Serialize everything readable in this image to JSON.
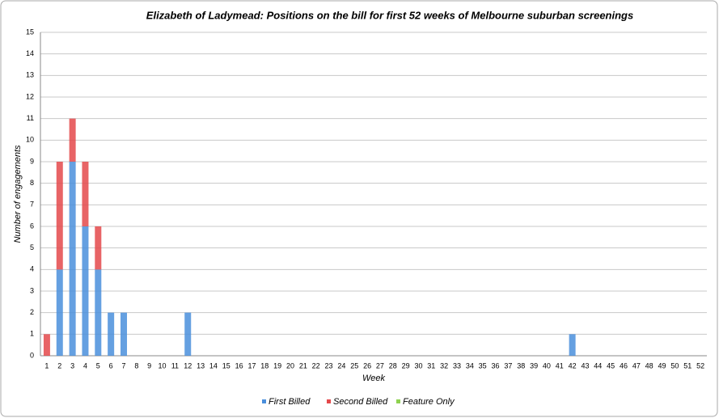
{
  "chart_data": {
    "type": "bar",
    "stacked": true,
    "title": "Elizabeth of Ladymead: Positions on the bill for first 52 weeks of Melbourne suburban screenings",
    "x_label": "Week",
    "y_label": "Number of engagements",
    "categories": [
      "1",
      "2",
      "3",
      "4",
      "5",
      "6",
      "7",
      "8",
      "9",
      "10",
      "11",
      "12",
      "13",
      "14",
      "15",
      "16",
      "17",
      "18",
      "19",
      "20",
      "21",
      "22",
      "23",
      "24",
      "25",
      "26",
      "27",
      "28",
      "29",
      "30",
      "31",
      "32",
      "33",
      "34",
      "35",
      "36",
      "37",
      "38",
      "39",
      "40",
      "41",
      "42",
      "43",
      "44",
      "45",
      "46",
      "47",
      "48",
      "49",
      "50",
      "51",
      "52"
    ],
    "series": [
      {
        "name": "First Billed",
        "color": "#4a8fdc",
        "values": [
          0,
          4,
          9,
          6,
          4,
          2,
          2,
          0,
          0,
          0,
          0,
          2,
          0,
          0,
          0,
          0,
          0,
          0,
          0,
          0,
          0,
          0,
          0,
          0,
          0,
          0,
          0,
          0,
          0,
          0,
          0,
          0,
          0,
          0,
          0,
          0,
          0,
          0,
          0,
          0,
          0,
          1,
          0,
          0,
          0,
          0,
          0,
          0,
          0,
          0,
          0,
          0
        ]
      },
      {
        "name": "Second Billed",
        "color": "#e4494b",
        "values": [
          1,
          5,
          2,
          3,
          2,
          0,
          0,
          0,
          0,
          0,
          0,
          0,
          0,
          0,
          0,
          0,
          0,
          0,
          0,
          0,
          0,
          0,
          0,
          0,
          0,
          0,
          0,
          0,
          0,
          0,
          0,
          0,
          0,
          0,
          0,
          0,
          0,
          0,
          0,
          0,
          0,
          0,
          0,
          0,
          0,
          0,
          0,
          0,
          0,
          0,
          0,
          0
        ]
      },
      {
        "name": "Feature Only",
        "color": "#8fd250",
        "values": [
          0,
          0,
          0,
          0,
          0,
          0,
          0,
          0,
          0,
          0,
          0,
          0,
          0,
          0,
          0,
          0,
          0,
          0,
          0,
          0,
          0,
          0,
          0,
          0,
          0,
          0,
          0,
          0,
          0,
          0,
          0,
          0,
          0,
          0,
          0,
          0,
          0,
          0,
          0,
          0,
          0,
          0,
          0,
          0,
          0,
          0,
          0,
          0,
          0,
          0,
          0,
          0
        ]
      }
    ],
    "ylim": [
      0,
      15
    ],
    "yticks": [
      0,
      1,
      2,
      3,
      4,
      5,
      6,
      7,
      8,
      9,
      10,
      11,
      12,
      13,
      14,
      15
    ],
    "grid": true,
    "legend": "bottom"
  }
}
